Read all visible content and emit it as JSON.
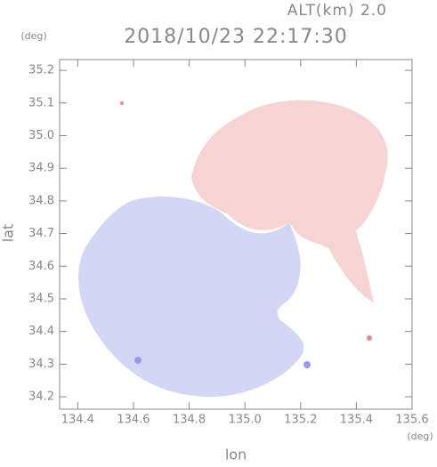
{
  "chart_data": {
    "type": "map",
    "title": "2018/10/23 22:17:30",
    "subtitle": "ALT(km) 2.0",
    "x_label": "lon",
    "y_label": "lat",
    "x_unit": "(deg)",
    "y_unit": "(deg)",
    "xlim": [
      134.335,
      135.6
    ],
    "ylim": [
      34.162,
      35.233
    ],
    "xticks": [
      134.4,
      134.6,
      134.8,
      {
        "value": 135,
        "label": "135.0"
      },
      135.2,
      135.4,
      135.6
    ],
    "yticks": [
      34.2,
      34.3,
      34.4,
      34.5,
      34.6,
      34.7,
      34.8,
      34.9,
      {
        "value": 35,
        "label": "35.0"
      },
      35.1,
      35.2
    ]
  }
}
